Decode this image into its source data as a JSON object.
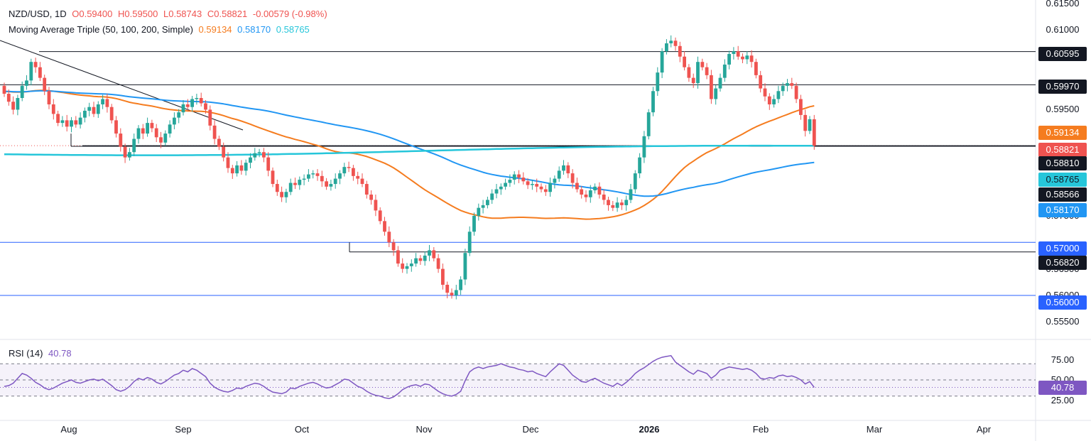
{
  "legend": {
    "symbol": "NZD/USD, 1D",
    "open": "O0.59400",
    "high": "H0.59500",
    "low": "L0.58743",
    "close": "C0.58821",
    "change": "-0.00579 (-0.98%)",
    "ma_label": "Moving Average Triple (50, 100, 200, Simple)",
    "ma50": "0.59134",
    "ma100": "0.58170",
    "ma200": "0.58765"
  },
  "rsi_legend": {
    "label": "RSI (14)",
    "value": "40.78"
  },
  "colors": {
    "up": "#26a69a",
    "down": "#ef5350",
    "ma50": "#f57c1f",
    "ma100": "#2196f3",
    "ma200": "#26c6da",
    "rsi": "#7e57c2",
    "level_black": "#131722",
    "level_blue": "#2962ff"
  },
  "chart_data": {
    "type": "candlestick",
    "title": "NZD/USD, 1D",
    "price_axis": {
      "min": 0.5525,
      "max": 0.615,
      "ticks": [
        "0.61500",
        "0.61000",
        "0.59500",
        "0.57500",
        "0.56500",
        "0.56000",
        "0.55500"
      ]
    },
    "time_axis": {
      "labels": [
        {
          "text": "Aug",
          "bold": false
        },
        {
          "text": "Sep",
          "bold": false
        },
        {
          "text": "Oct",
          "bold": false
        },
        {
          "text": "Nov",
          "bold": false
        },
        {
          "text": "Dec",
          "bold": false
        },
        {
          "text": "2026",
          "bold": true
        },
        {
          "text": "Feb",
          "bold": false
        },
        {
          "text": "Mar",
          "bold": false
        },
        {
          "text": "Apr",
          "bold": false
        }
      ]
    },
    "levels": [
      {
        "value": 0.60595,
        "label": "0.60595",
        "style": "black"
      },
      {
        "value": 0.5997,
        "label": "0.59970",
        "style": "black"
      },
      {
        "value": 0.58821,
        "label": "0.58821",
        "style": "dotted"
      },
      {
        "value": 0.5881,
        "label": "0.58810",
        "style": "black"
      },
      {
        "value": 0.57,
        "label": "0.57000",
        "style": "blue"
      },
      {
        "value": 0.5682,
        "label": "0.56820",
        "style": "black"
      },
      {
        "value": 0.56,
        "label": "0.56000",
        "style": "blue"
      }
    ],
    "axis_badges": [
      {
        "value": 0.60595,
        "label": "0.60595",
        "bg": "#131722",
        "fg": "#ffffff"
      },
      {
        "value": 0.5997,
        "label": "0.59970",
        "bg": "#131722",
        "fg": "#ffffff"
      },
      {
        "value": 0.59134,
        "label": "0.59134",
        "bg": "#f57c1f",
        "fg": "#ffffff"
      },
      {
        "value": 0.58821,
        "label": "0.58821",
        "bg": "#ef5350",
        "fg": "#ffffff"
      },
      {
        "value": 0.5881,
        "label": "0.58810",
        "bg": "#131722",
        "fg": "#ffffff"
      },
      {
        "value": 0.58765,
        "label": "0.58765",
        "bg": "#26c6da",
        "fg": "#131722"
      },
      {
        "value": 0.58566,
        "label": "0.58566",
        "bg": "#131722",
        "fg": "#ffffff"
      },
      {
        "value": 0.5817,
        "label": "0.58170",
        "bg": "#2196f3",
        "fg": "#ffffff"
      },
      {
        "value": 0.57,
        "label": "0.57000",
        "bg": "#2962ff",
        "fg": "#ffffff"
      },
      {
        "value": 0.5682,
        "label": "0.56820",
        "bg": "#131722",
        "fg": "#ffffff"
      },
      {
        "value": 0.56,
        "label": "0.56000",
        "bg": "#2962ff",
        "fg": "#ffffff"
      }
    ],
    "close_series": [
      0.598,
      0.5965,
      0.595,
      0.5972,
      0.5995,
      0.6005,
      0.604,
      0.603,
      0.601,
      0.5985,
      0.596,
      0.5942,
      0.5925,
      0.593,
      0.5918,
      0.593,
      0.5922,
      0.5935,
      0.5948,
      0.5955,
      0.5942,
      0.596,
      0.597,
      0.5955,
      0.593,
      0.5905,
      0.588,
      0.586,
      0.587,
      0.5895,
      0.5915,
      0.5905,
      0.5925,
      0.5915,
      0.5898,
      0.5888,
      0.5905,
      0.5922,
      0.5935,
      0.5945,
      0.596,
      0.5955,
      0.597,
      0.5972,
      0.5962,
      0.595,
      0.592,
      0.5895,
      0.588,
      0.586,
      0.584,
      0.583,
      0.5845,
      0.5835,
      0.585,
      0.586,
      0.5868,
      0.587,
      0.586,
      0.5835,
      0.581,
      0.5795,
      0.5785,
      0.5795,
      0.5812,
      0.5808,
      0.5818,
      0.582,
      0.5828,
      0.583,
      0.5825,
      0.5815,
      0.5805,
      0.581,
      0.582,
      0.583,
      0.5842,
      0.584,
      0.5825,
      0.582,
      0.581,
      0.579,
      0.578,
      0.576,
      0.574,
      0.572,
      0.57,
      0.5685,
      0.566,
      0.565,
      0.5655,
      0.566,
      0.567,
      0.5665,
      0.5675,
      0.5685,
      0.567,
      0.565,
      0.562,
      0.5605,
      0.56,
      0.561,
      0.563,
      0.568,
      0.572,
      0.575,
      0.5765,
      0.577,
      0.578,
      0.5792,
      0.58,
      0.5805,
      0.5812,
      0.5818,
      0.5828,
      0.5822,
      0.5815,
      0.5808,
      0.581,
      0.5805,
      0.58,
      0.5795,
      0.5812,
      0.582,
      0.5835,
      0.5845,
      0.583,
      0.5812,
      0.58,
      0.579,
      0.5785,
      0.5798,
      0.5805,
      0.579,
      0.578,
      0.577,
      0.5765,
      0.5775,
      0.577,
      0.578,
      0.58,
      0.583,
      0.586,
      0.59,
      0.5945,
      0.5985,
      0.602,
      0.606,
      0.6075,
      0.608,
      0.607,
      0.605,
      0.603,
      0.601,
      0.6,
      0.604,
      0.603,
      0.6015,
      0.597,
      0.599,
      0.601,
      0.6035,
      0.6055,
      0.606,
      0.605,
      0.6045,
      0.6052,
      0.604,
      0.6015,
      0.599,
      0.5975,
      0.596,
      0.597,
      0.5985,
      0.5995,
      0.6,
      0.5995,
      0.597,
      0.594,
      0.591,
      0.5932,
      0.5882
    ],
    "rsi": {
      "label": "RSI (14)",
      "value": 40.78,
      "ticks": [
        "75.00",
        "50.00",
        "25.00"
      ],
      "upper": 70,
      "middle": 50,
      "lower": 30,
      "series": [
        42,
        43,
        46,
        52,
        58,
        56,
        52,
        47,
        44,
        40,
        38,
        40,
        43,
        46,
        48,
        50,
        47,
        46,
        48,
        50,
        51,
        49,
        51,
        47,
        43,
        38,
        36,
        38,
        42,
        48,
        52,
        50,
        53,
        51,
        47,
        45,
        48,
        52,
        56,
        58,
        62,
        60,
        64,
        62,
        58,
        54,
        46,
        41,
        38,
        36,
        35,
        37,
        40,
        39,
        42,
        44,
        46,
        45,
        42,
        38,
        35,
        34,
        33,
        35,
        40,
        39,
        42,
        44,
        46,
        47,
        45,
        42,
        40,
        41,
        44,
        47,
        51,
        50,
        46,
        42,
        40,
        36,
        33,
        31,
        30,
        28,
        27,
        29,
        33,
        38,
        41,
        43,
        44,
        42,
        45,
        44,
        40,
        36,
        33,
        31,
        30,
        32,
        36,
        49,
        60,
        64,
        66,
        64,
        66,
        67,
        68,
        70,
        68,
        66,
        65,
        63,
        62,
        60,
        61,
        58,
        56,
        54,
        60,
        65,
        70,
        68,
        62,
        56,
        52,
        48,
        47,
        50,
        52,
        49,
        46,
        44,
        42,
        46,
        43,
        47,
        52,
        58,
        62,
        65,
        69,
        73,
        76,
        78,
        79,
        80,
        72,
        68,
        64,
        60,
        57,
        62,
        60,
        58,
        52,
        56,
        62,
        64,
        66,
        65,
        64,
        63,
        64,
        62,
        58,
        52,
        51,
        53,
        52,
        55,
        56,
        54,
        55,
        53,
        50,
        45,
        48,
        40.78
      ]
    }
  }
}
